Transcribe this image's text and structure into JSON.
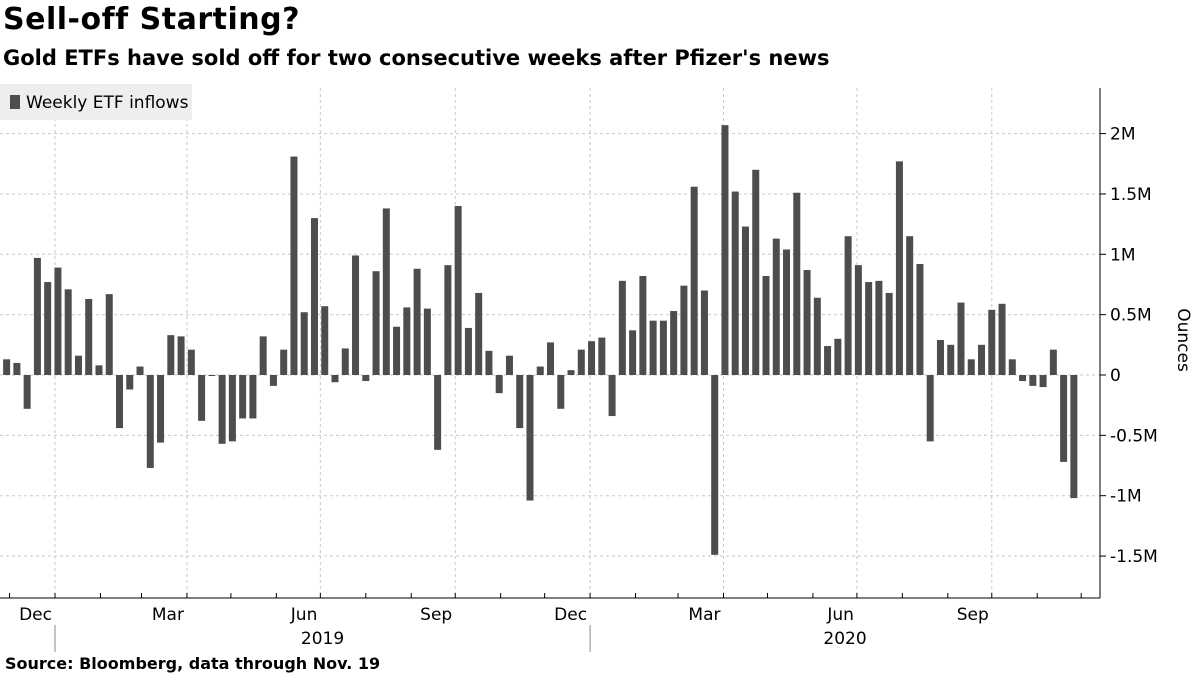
{
  "header": {
    "title": "Sell-off Starting?",
    "subtitle": "Gold ETFs have sold off for two consecutive weeks after Pfizer's news"
  },
  "footer": {
    "source": "Source: Bloomberg, data through Nov. 19"
  },
  "chart_data": {
    "type": "bar",
    "title": "Sell-off Starting?",
    "subtitle": "Gold ETFs have sold off for two consecutive weeks after Pfizer's news",
    "ylabel": "Ounces",
    "legend": {
      "entries": [
        "Weekly ETF inflows"
      ],
      "placement": "top-left"
    },
    "grid": true,
    "ylim": [
      -1800000,
      2400000
    ],
    "yticks": [
      -1500000,
      -1000000,
      -500000,
      0,
      500000,
      1000000,
      1500000,
      2000000
    ],
    "ytick_labels": [
      "-1.5M",
      "-1M",
      "-0.5M",
      "0",
      "0.5M",
      "1M",
      "1.5M",
      "2M"
    ],
    "xtick_labels": [
      {
        "label": "Dec",
        "month": "2018-12"
      },
      {
        "label": "Mar",
        "month": "2019-03"
      },
      {
        "label": "Jun",
        "month": "2019-06"
      },
      {
        "label": "Sep",
        "month": "2019-09"
      },
      {
        "label": "Dec",
        "month": "2019-12"
      },
      {
        "label": "Mar",
        "month": "2020-03"
      },
      {
        "label": "Jun",
        "month": "2020-06"
      },
      {
        "label": "Sep",
        "month": "2020-09"
      }
    ],
    "year_labels": [
      {
        "label": "2019",
        "year": 2019
      },
      {
        "label": "2020",
        "year": 2020
      }
    ],
    "first_week": "2018-11-22",
    "last_week": "2020-11-19",
    "bar_color": "#4d4d4d",
    "series": [
      {
        "name": "Weekly ETF inflows",
        "values": [
          130000,
          100000,
          -280000,
          970000,
          770000,
          890000,
          710000,
          160000,
          630000,
          80000,
          670000,
          -440000,
          -120000,
          70000,
          -770000,
          -560000,
          330000,
          320000,
          210000,
          -380000,
          -5000,
          -570000,
          -550000,
          -360000,
          -360000,
          320000,
          -90000,
          210000,
          1810000,
          520000,
          1300000,
          570000,
          -60000,
          220000,
          990000,
          -50000,
          860000,
          1380000,
          400000,
          560000,
          880000,
          550000,
          -620000,
          910000,
          1400000,
          390000,
          680000,
          200000,
          -150000,
          160000,
          -440000,
          -1040000,
          70000,
          270000,
          -280000,
          40000,
          210000,
          280000,
          310000,
          -340000,
          780000,
          370000,
          820000,
          450000,
          450000,
          530000,
          740000,
          1560000,
          700000,
          -1490000,
          2070000,
          1520000,
          1230000,
          1700000,
          820000,
          1130000,
          1040000,
          1510000,
          870000,
          640000,
          240000,
          300000,
          1150000,
          910000,
          770000,
          780000,
          680000,
          1770000,
          1150000,
          920000,
          -550000,
          290000,
          250000,
          600000,
          130000,
          250000,
          540000,
          590000,
          130000,
          -50000,
          -90000,
          -100000,
          210000,
          -720000,
          -1020000
        ]
      }
    ]
  }
}
